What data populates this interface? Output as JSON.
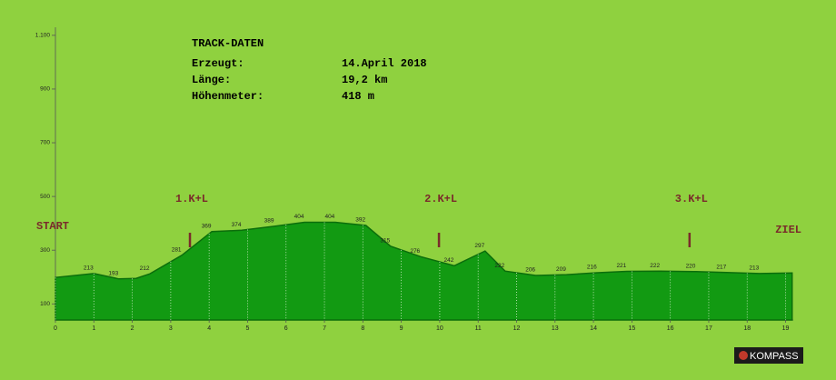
{
  "chart_data": {
    "type": "area",
    "x": [
      0,
      1.0,
      1.65,
      2.1,
      2.46,
      3.29,
      4.07,
      4.85,
      5.7,
      6.48,
      7.28,
      8.08,
      8.72,
      9.5,
      10.38,
      11.18,
      11.7,
      12.5,
      13.3,
      14.1,
      14.87,
      15.74,
      16.67,
      17.47,
      18.32,
      19.17
    ],
    "values": [
      198,
      213,
      193,
      195,
      212,
      281,
      369,
      374,
      389,
      404,
      404,
      392,
      315,
      276,
      242,
      297,
      222,
      206,
      209,
      216,
      221,
      222,
      220,
      217,
      213,
      215
    ],
    "value_labels": [
      null,
      213,
      193,
      null,
      212,
      281,
      369,
      374,
      389,
      404,
      404,
      392,
      315,
      276,
      242,
      297,
      222,
      206,
      209,
      216,
      221,
      222,
      220,
      217,
      213,
      null
    ],
    "color": "#129a12",
    "xlim": [
      0,
      19.2
    ],
    "xticks": [
      0,
      1,
      2,
      3,
      4,
      5,
      6,
      7,
      8,
      9,
      10,
      11,
      12,
      13,
      14,
      15,
      16,
      17,
      18,
      19
    ],
    "ylim": [
      40,
      1130
    ],
    "yticks": [
      100,
      300,
      500,
      700,
      900,
      {
        "value": 1100,
        "label": "1.100"
      }
    ],
    "grid": true,
    "start_label": "START",
    "end_label": "ZIEL",
    "checkpoints": [
      {
        "x": 3.5,
        "label": "1.K+L"
      },
      {
        "x": 9.98,
        "label": "2.K+L"
      },
      {
        "x": 16.5,
        "label": "3.K+L"
      }
    ]
  },
  "track_data": {
    "title": "TRACK-DATEN",
    "rows": [
      [
        "Erzeugt:",
        "14.April 2018"
      ],
      [
        "Länge:",
        "19,2 km"
      ],
      [
        "Höhenmeter:",
        "418 m"
      ]
    ]
  },
  "logo": "KOMPASS"
}
